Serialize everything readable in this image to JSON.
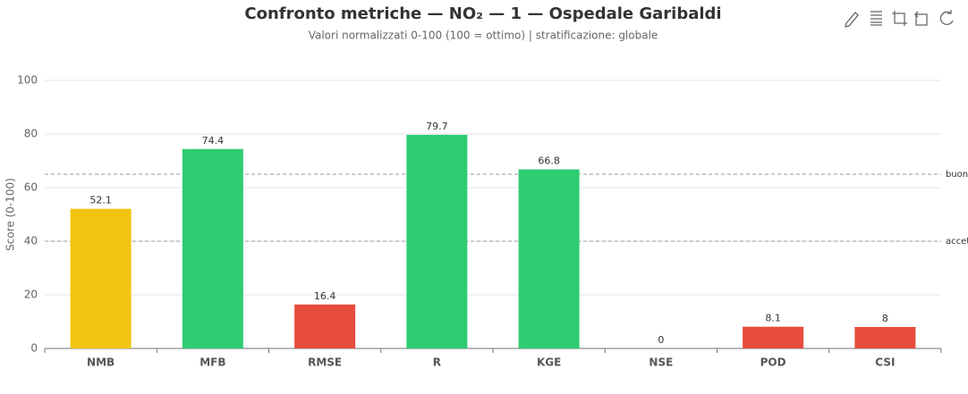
{
  "chart_data": {
    "type": "bar",
    "title": "Confronto metriche — NO₂ — 1 — Ospedale Garibaldi",
    "subtitle": "Valori normalizzati 0-100 (100 = ottimo)  |  stratificazione: globale",
    "y_label": "Score (0-100)",
    "categories": [
      "NMB",
      "MFB",
      "RMSE",
      "R",
      "KGE",
      "NSE",
      "POD",
      "CSI"
    ],
    "values": [
      52.1,
      74.4,
      16.4,
      79.7,
      66.8,
      0,
      8.1,
      8
    ],
    "colors": [
      "#f1c40f",
      "#2ecc71",
      "#e74c3c",
      "#2ecc71",
      "#2ecc71",
      "#e74c3c",
      "#e74c3c",
      "#e74c3c"
    ],
    "ylim": [
      0,
      100
    ],
    "yticks": [
      0,
      20,
      40,
      60,
      80,
      100
    ],
    "grid": true,
    "thresholds": [
      {
        "value": 65,
        "label": "buono"
      },
      {
        "value": 40,
        "label": "accettabile"
      }
    ]
  }
}
